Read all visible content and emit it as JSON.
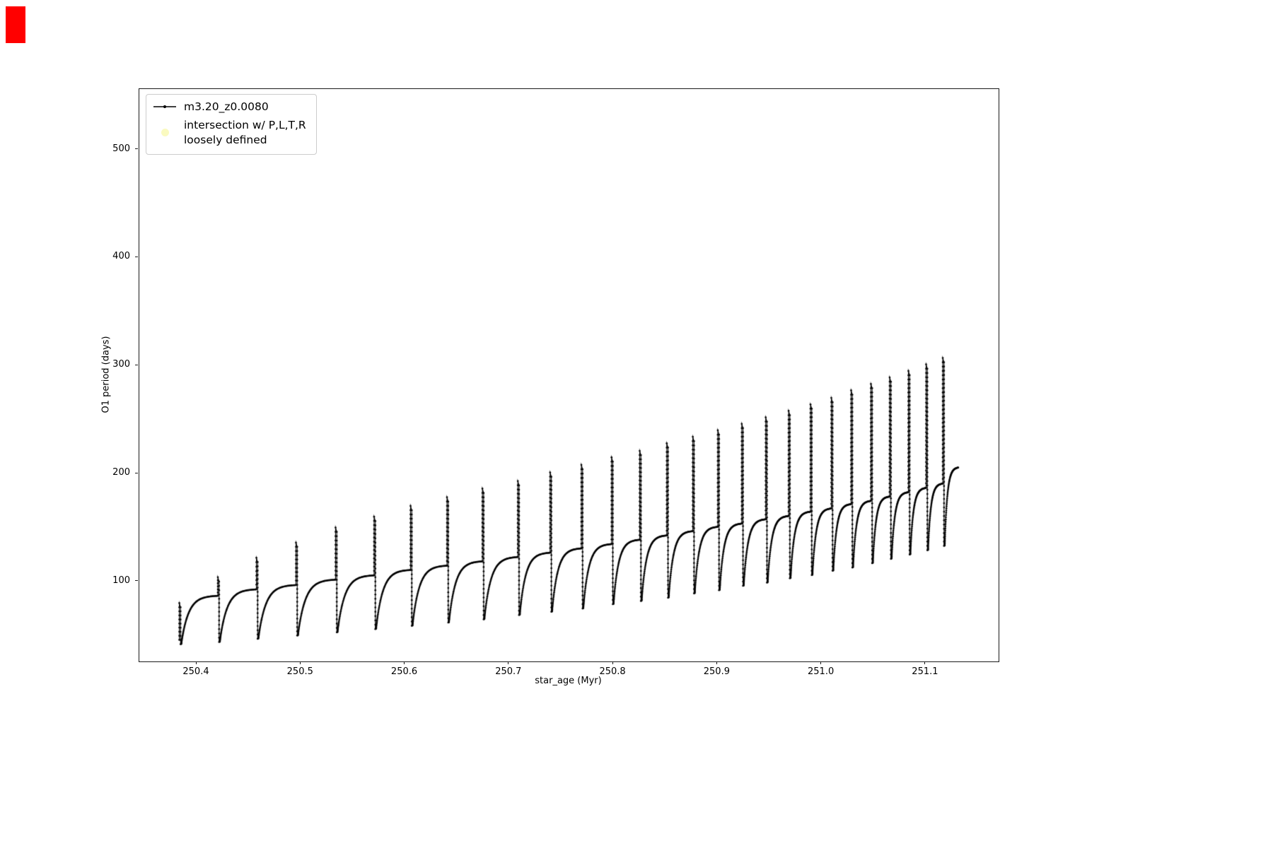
{
  "corner_marker": {
    "color": "#ff0000"
  },
  "chart_data": {
    "type": "line",
    "title": "",
    "xlabel": "star_age (Myr)",
    "ylabel": "O1 period (days)",
    "xlim": [
      250.345,
      251.17
    ],
    "ylim": [
      26,
      556
    ],
    "xticks": [
      250.4,
      250.5,
      250.6,
      250.7,
      250.8,
      250.9,
      251.0,
      251.1
    ],
    "yticks": [
      100,
      200,
      300,
      400,
      500
    ],
    "grid": false,
    "legend_position": "upper left",
    "legend": [
      {
        "label": "m3.20_z0.0080",
        "marker": "line-with-dot",
        "color": "#000000"
      },
      {
        "label": "intersection w/ P,L,T,R\nloosely defined",
        "marker": "dot",
        "color": "#fafac0"
      }
    ],
    "series": [
      {
        "name": "m3.20_z0.0080",
        "color": "#000000",
        "shape": "relaxation cycles: after each spike the period drops to a minimum, recovers to a plateau, then spikes sharply",
        "start": {
          "t": 250.3825,
          "y": 46
        },
        "t_end": 251.132,
        "end_value": 205,
        "cycles": [
          {
            "t": 250.384,
            "peak": 80,
            "low": 42,
            "plateau": 87
          },
          {
            "t": 250.421,
            "peak": 104,
            "low": 44,
            "plateau": 93
          },
          {
            "t": 250.458,
            "peak": 122,
            "low": 47,
            "plateau": 97
          },
          {
            "t": 250.496,
            "peak": 136,
            "low": 50,
            "plateau": 102
          },
          {
            "t": 250.534,
            "peak": 150,
            "low": 53,
            "plateau": 106
          },
          {
            "t": 250.571,
            "peak": 160,
            "low": 56,
            "plateau": 111
          },
          {
            "t": 250.606,
            "peak": 170,
            "low": 59,
            "plateau": 115
          },
          {
            "t": 250.641,
            "peak": 178,
            "low": 62,
            "plateau": 119
          },
          {
            "t": 250.675,
            "peak": 186,
            "low": 65,
            "plateau": 123
          },
          {
            "t": 250.709,
            "peak": 193,
            "low": 69,
            "plateau": 127
          },
          {
            "t": 250.74,
            "peak": 201,
            "low": 72,
            "plateau": 131
          },
          {
            "t": 250.77,
            "peak": 208,
            "low": 75,
            "plateau": 135
          },
          {
            "t": 250.799,
            "peak": 215,
            "low": 79,
            "plateau": 139
          },
          {
            "t": 250.826,
            "peak": 221,
            "low": 82,
            "plateau": 143
          },
          {
            "t": 250.852,
            "peak": 228,
            "low": 85,
            "plateau": 147
          },
          {
            "t": 250.877,
            "peak": 234,
            "low": 89,
            "plateau": 151
          },
          {
            "t": 250.901,
            "peak": 240,
            "low": 92,
            "plateau": 154
          },
          {
            "t": 250.924,
            "peak": 246,
            "low": 96,
            "plateau": 158
          },
          {
            "t": 250.947,
            "peak": 252,
            "low": 99,
            "plateau": 161
          },
          {
            "t": 250.969,
            "peak": 258,
            "low": 103,
            "plateau": 165
          },
          {
            "t": 250.99,
            "peak": 264,
            "low": 106,
            "plateau": 168
          },
          {
            "t": 251.01,
            "peak": 270,
            "low": 110,
            "plateau": 172
          },
          {
            "t": 251.029,
            "peak": 277,
            "low": 113,
            "plateau": 175
          },
          {
            "t": 251.048,
            "peak": 283,
            "low": 117,
            "plateau": 179
          },
          {
            "t": 251.066,
            "peak": 289,
            "low": 121,
            "plateau": 183
          },
          {
            "t": 251.084,
            "peak": 295,
            "low": 125,
            "plateau": 187
          },
          {
            "t": 251.101,
            "peak": 301,
            "low": 129,
            "plateau": 191
          },
          {
            "t": 251.117,
            "peak": 307,
            "low": 133,
            "plateau": 206
          }
        ]
      }
    ]
  }
}
